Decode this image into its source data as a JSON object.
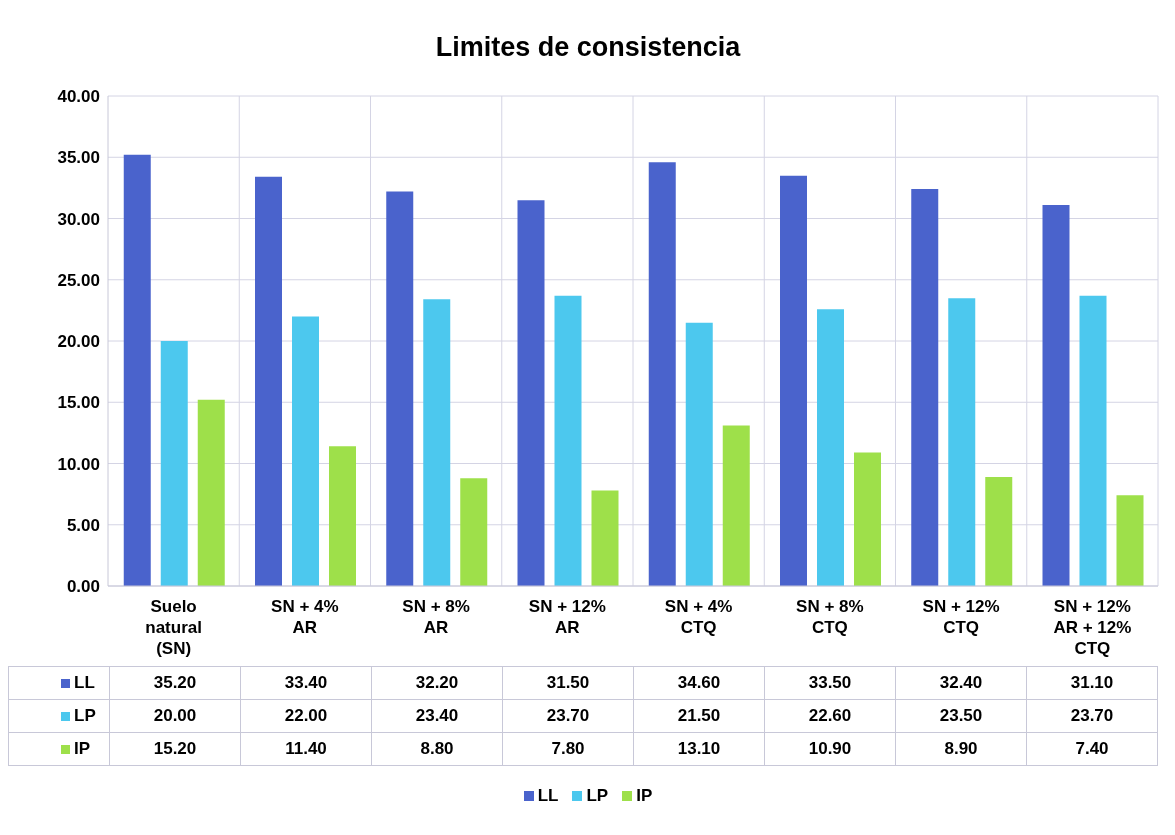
{
  "chart_data": {
    "type": "bar",
    "title": "Limites de consistencia",
    "categories": [
      "Suelo natural (SN)",
      "SN + 4% AR",
      "SN + 8% AR",
      "SN + 12% AR",
      "SN + 4% CTQ",
      "SN + 8% CTQ",
      "SN + 12% CTQ",
      "SN + 12% AR + 12% CTQ"
    ],
    "series": [
      {
        "name": "LL",
        "color": "#4a63cc",
        "values": [
          35.2,
          33.4,
          32.2,
          31.5,
          34.6,
          33.5,
          32.4,
          31.1
        ],
        "value_labels": [
          "35.20",
          "33.40",
          "32.20",
          "31.50",
          "34.60",
          "33.50",
          "32.40",
          "31.10"
        ]
      },
      {
        "name": "LP",
        "color": "#4cc8ee",
        "values": [
          20.0,
          22.0,
          23.4,
          23.7,
          21.5,
          22.6,
          23.5,
          23.7
        ],
        "value_labels": [
          "20.00",
          "22.00",
          "23.40",
          "23.70",
          "21.50",
          "22.60",
          "23.50",
          "23.70"
        ]
      },
      {
        "name": "IP",
        "color": "#9ee04a",
        "values": [
          15.2,
          11.4,
          8.8,
          7.8,
          13.1,
          10.9,
          8.9,
          7.4
        ],
        "value_labels": [
          "15.20",
          "11.40",
          "8.80",
          "7.80",
          "13.10",
          "10.90",
          "8.90",
          "7.40"
        ]
      }
    ],
    "ylim": [
      0,
      40
    ],
    "yticks": [
      {
        "value": 0,
        "label": "0.00"
      },
      {
        "value": 5,
        "label": "5.00"
      },
      {
        "value": 10,
        "label": "10.00"
      },
      {
        "value": 15,
        "label": "15.00"
      },
      {
        "value": 20,
        "label": "20.00"
      },
      {
        "value": 25,
        "label": "25.00"
      },
      {
        "value": 30,
        "label": "30.00"
      },
      {
        "value": 35,
        "label": "35.00"
      },
      {
        "value": 40,
        "label": "40.00"
      }
    ],
    "grid": true,
    "legend": "bottom"
  }
}
